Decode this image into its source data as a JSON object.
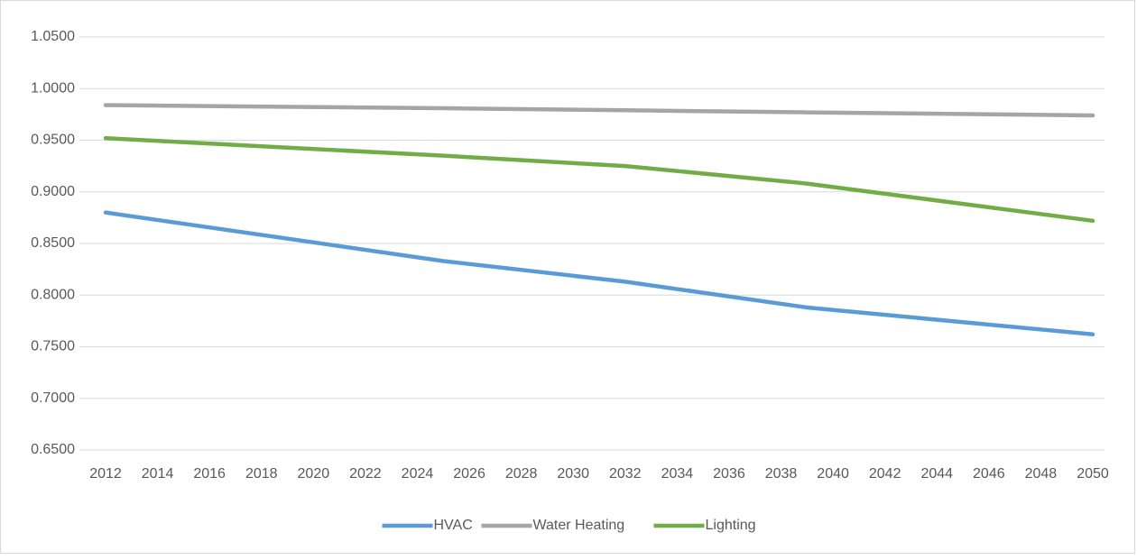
{
  "chart_data": {
    "type": "line",
    "x": [
      2012,
      2025,
      2032,
      2039,
      2050
    ],
    "xlim": [
      2012,
      2050
    ],
    "xticks": [
      2012,
      2014,
      2016,
      2018,
      2020,
      2022,
      2024,
      2026,
      2028,
      2030,
      2032,
      2034,
      2036,
      2038,
      2040,
      2042,
      2044,
      2046,
      2048,
      2050
    ],
    "ylim": [
      0.65,
      1.05
    ],
    "yticks": [
      {
        "value": 0.65,
        "label": "0.6500"
      },
      {
        "value": 0.7,
        "label": "0.7000"
      },
      {
        "value": 0.75,
        "label": "0.7500"
      },
      {
        "value": 0.8,
        "label": "0.8000"
      },
      {
        "value": 0.85,
        "label": "0.8500"
      },
      {
        "value": 0.9,
        "label": "0.9000"
      },
      {
        "value": 0.95,
        "label": "0.9500"
      },
      {
        "value": 1.0,
        "label": "1.0000"
      },
      {
        "value": 1.05,
        "label": "1.0500"
      }
    ],
    "grid": true,
    "legend": "bottom",
    "series": [
      {
        "name": "HVAC",
        "color": "#5b9bd5",
        "values": [
          0.88,
          0.833,
          0.813,
          0.788,
          0.762
        ]
      },
      {
        "name": "Water Heating",
        "color": "#a5a5a5",
        "values": [
          0.984,
          0.981,
          0.979,
          0.977,
          0.974
        ]
      },
      {
        "name": "Lighting",
        "color": "#70ad47",
        "values": [
          0.952,
          0.935,
          0.925,
          0.908,
          0.872
        ]
      }
    ]
  }
}
